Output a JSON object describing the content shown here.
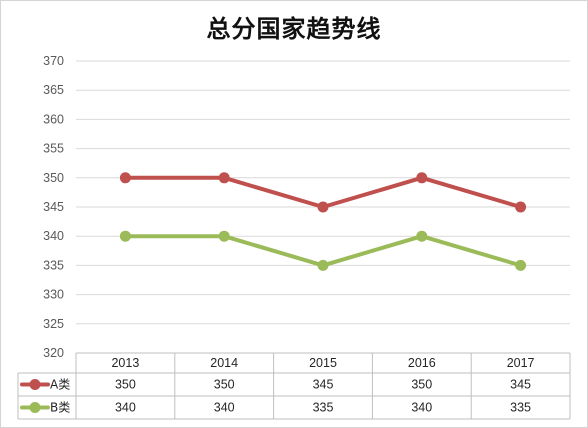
{
  "chart_data": {
    "type": "line",
    "title": "总分国家趋势线",
    "categories": [
      "2013",
      "2014",
      "2015",
      "2016",
      "2017"
    ],
    "series": [
      {
        "name": "A类",
        "values": [
          350,
          350,
          345,
          350,
          345
        ],
        "color": "#c0504d"
      },
      {
        "name": "B类",
        "values": [
          340,
          340,
          335,
          340,
          335
        ],
        "color": "#9bbb59"
      }
    ],
    "ylim": [
      320,
      370
    ],
    "yticks": [
      320,
      325,
      330,
      335,
      340,
      345,
      350,
      355,
      360,
      365,
      370
    ],
    "grid": true,
    "legend": "bottom-left",
    "data_table": true,
    "gridline_color": "#d9d9d9",
    "table_border_color": "#bfbfbf"
  }
}
